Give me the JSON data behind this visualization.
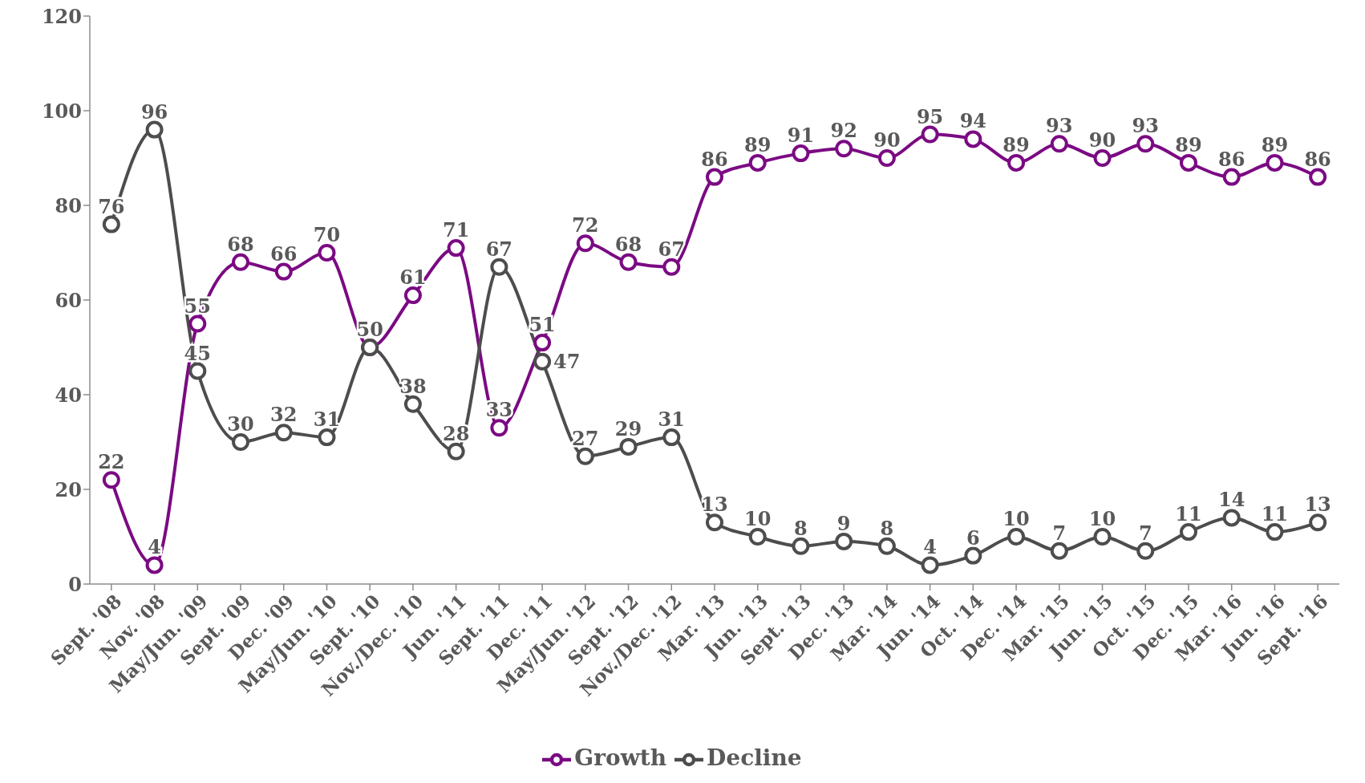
{
  "chart_data": {
    "type": "line",
    "categories": [
      "Sept. '08",
      "Nov. '08",
      "May/Jun. '09",
      "Sept. '09",
      "Dec. '09",
      "May/Jun. '10",
      "Sept. '10",
      "Nov./Dec. '10",
      "Jun. '11",
      "Sept. '11",
      "Dec. '11",
      "May/Jun. '12",
      "Sept. '12",
      "Nov./Dec. '12",
      "Mar. '13",
      "Jun. '13",
      "Sept. '13",
      "Dec. '13",
      "Mar. '14",
      "Jun. '14",
      "Oct. '14",
      "Dec. '14",
      "Mar. '15",
      "Jun. '15",
      "Oct. '15",
      "Dec. '15",
      "Mar. '16",
      "Jun. '16",
      "Sept. '16"
    ],
    "series": [
      {
        "name": "Growth",
        "color": "#7b0a83",
        "values": [
          22,
          4,
          55,
          68,
          66,
          70,
          50,
          61,
          71,
          33,
          51,
          72,
          68,
          67,
          86,
          89,
          91,
          92,
          90,
          95,
          94,
          89,
          93,
          90,
          93,
          89,
          86,
          89,
          86
        ],
        "value_labels": [
          "22",
          "4",
          "55",
          "68",
          "66",
          "70",
          "50",
          "61",
          "71",
          "33",
          "51",
          "72",
          "68",
          "67",
          "86",
          "89",
          "91",
          "92",
          "90",
          "95",
          "94",
          "89",
          "93",
          "90",
          "93",
          "89",
          "86",
          "89",
          "86"
        ]
      },
      {
        "name": "Decline",
        "color": "#4d4d4d",
        "values": [
          76,
          96,
          45,
          30,
          32,
          31,
          50,
          38,
          28,
          67,
          47,
          27,
          29,
          31,
          13,
          10,
          8,
          9,
          8,
          4,
          6,
          10,
          7,
          10,
          7,
          11,
          14,
          11,
          13
        ],
        "value_labels": [
          "76",
          "96",
          "45",
          "30",
          "32",
          "31",
          null,
          "38",
          "28",
          "67",
          "47",
          "27",
          "29",
          "31",
          "13",
          "10",
          "8",
          "9",
          "8",
          "4",
          "6",
          "10",
          "7",
          "10",
          "7",
          "11",
          "14",
          "11",
          "13"
        ]
      }
    ],
    "ylim": [
      0,
      120
    ],
    "yticks": [
      0,
      20,
      40,
      60,
      80,
      100,
      120
    ],
    "legend": "bottom",
    "marker": "circle",
    "line_style": "solid"
  }
}
